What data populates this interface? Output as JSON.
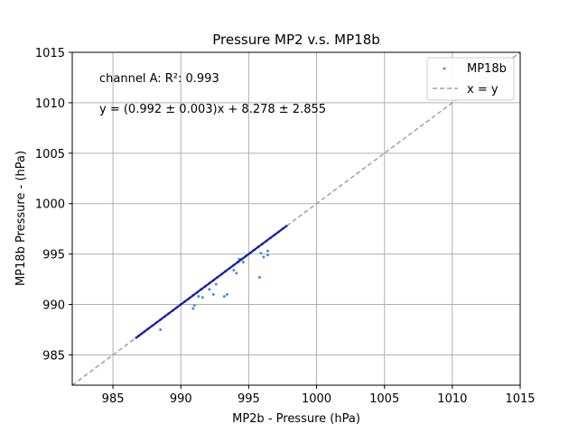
{
  "chart_data": {
    "type": "scatter",
    "title": "Pressure MP2 v.s. MP18b",
    "xlabel": "MP2b - Pressure (hPa)",
    "ylabel": "MP18b Pressure - (hPa)",
    "xlim": [
      982,
      1015
    ],
    "ylim": [
      982,
      1015
    ],
    "xticks": [
      "985",
      "990",
      "995",
      "1000",
      "1005",
      "1010",
      "1015"
    ],
    "yticks": [
      "985",
      "990",
      "995",
      "1000",
      "1005",
      "1010",
      "1015"
    ],
    "grid": true,
    "legend_position": "top-right",
    "annotations": [
      "channel A: R²: 0.993",
      "y = (0.992 ± 0.003)x + 8.278 ± 2.855"
    ],
    "colors": {
      "points": "#4a90d9",
      "fit": "#1a1aaa",
      "reference": "#a0a0a0"
    },
    "series": [
      {
        "name": "MP18b",
        "kind": "scatter",
        "x": [
          986.7,
          986.9,
          987.1,
          987.3,
          987.6,
          987.9,
          988.2,
          988.5,
          988.8,
          989.1,
          989.4,
          989.7,
          990.0,
          990.3,
          990.6,
          990.9,
          991.2,
          991.5,
          991.8,
          992.1,
          992.4,
          992.7,
          993.0,
          993.3,
          993.6,
          993.9,
          994.2,
          994.5,
          994.8,
          995.1,
          995.4,
          995.7,
          996.0,
          996.3,
          996.6,
          996.9,
          997.2,
          997.5,
          997.8,
          988.5,
          990.9,
          991.0,
          991.6,
          992.1,
          992.4,
          993.2,
          993.4,
          993.9,
          994.1,
          994.3,
          995.8,
          996.1,
          996.4,
          996.4,
          995.9,
          994.6,
          992.6,
          991.3
        ],
        "y": [
          986.7,
          986.9,
          987.1,
          987.3,
          987.6,
          987.9,
          988.2,
          988.5,
          988.8,
          989.1,
          989.4,
          989.7,
          990.0,
          990.3,
          990.6,
          990.9,
          991.2,
          991.5,
          991.8,
          992.1,
          992.4,
          992.7,
          993.0,
          993.3,
          993.6,
          993.9,
          994.2,
          994.5,
          994.8,
          995.1,
          995.4,
          995.7,
          996.0,
          996.3,
          996.6,
          996.9,
          997.2,
          997.5,
          997.8,
          987.5,
          989.6,
          989.9,
          990.7,
          991.5,
          991.0,
          990.8,
          991.0,
          993.4,
          993.1,
          994.5,
          992.7,
          994.7,
          994.9,
          995.3,
          995.1,
          994.2,
          992.0,
          990.8
        ]
      },
      {
        "name": "x = y",
        "kind": "reference-line",
        "x": [
          982,
          1015
        ],
        "y": [
          982,
          1015
        ]
      }
    ]
  }
}
